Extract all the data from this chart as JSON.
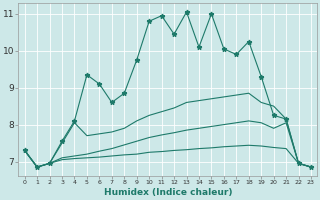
{
  "xlabel": "Humidex (Indice chaleur)",
  "bg_color": "#cde8e8",
  "grid_color": "#b8d8d8",
  "line_color": "#1e7a6a",
  "xlim": [
    -0.5,
    23.5
  ],
  "ylim": [
    6.6,
    11.3
  ],
  "xticks": [
    0,
    1,
    2,
    3,
    4,
    5,
    6,
    7,
    8,
    9,
    10,
    11,
    12,
    13,
    14,
    15,
    16,
    17,
    18,
    19,
    20,
    21,
    22,
    23
  ],
  "yticks": [
    7,
    8,
    9,
    10,
    11
  ],
  "series1_x": [
    0,
    1,
    2,
    3,
    4,
    5,
    6,
    7,
    8,
    9,
    10,
    11,
    12,
    13,
    14,
    15,
    16,
    17,
    18,
    19,
    20,
    21,
    22,
    23
  ],
  "series1_y": [
    7.3,
    6.85,
    6.95,
    7.55,
    8.1,
    9.35,
    9.1,
    8.6,
    8.85,
    9.75,
    10.8,
    10.95,
    10.45,
    11.05,
    10.1,
    11.0,
    10.05,
    9.9,
    10.25,
    9.3,
    8.25,
    8.15,
    6.95,
    6.85
  ],
  "series2_x": [
    0,
    1,
    2,
    3,
    4,
    5,
    6,
    7,
    8,
    9,
    10,
    11,
    12,
    13,
    14,
    15,
    16,
    17,
    18,
    19,
    20,
    21,
    22,
    23
  ],
  "series2_y": [
    7.3,
    6.85,
    6.95,
    7.5,
    8.05,
    7.7,
    7.75,
    7.8,
    7.9,
    8.1,
    8.25,
    8.35,
    8.45,
    8.6,
    8.65,
    8.7,
    8.75,
    8.8,
    8.85,
    8.6,
    8.5,
    8.15,
    6.95,
    6.85
  ],
  "series3_x": [
    0,
    1,
    2,
    3,
    4,
    5,
    6,
    7,
    8,
    9,
    10,
    11,
    12,
    13,
    14,
    15,
    16,
    17,
    18,
    19,
    20,
    21,
    22,
    23
  ],
  "series3_y": [
    7.3,
    6.85,
    6.95,
    7.1,
    7.15,
    7.2,
    7.28,
    7.35,
    7.45,
    7.55,
    7.65,
    7.72,
    7.78,
    7.85,
    7.9,
    7.95,
    8.0,
    8.05,
    8.1,
    8.05,
    7.9,
    8.05,
    6.95,
    6.85
  ],
  "series4_x": [
    0,
    1,
    2,
    3,
    4,
    5,
    6,
    7,
    8,
    9,
    10,
    11,
    12,
    13,
    14,
    15,
    16,
    17,
    18,
    19,
    20,
    21,
    22,
    23
  ],
  "series4_y": [
    7.3,
    6.85,
    6.95,
    7.05,
    7.08,
    7.1,
    7.12,
    7.15,
    7.18,
    7.2,
    7.25,
    7.27,
    7.3,
    7.32,
    7.35,
    7.37,
    7.4,
    7.42,
    7.44,
    7.42,
    7.38,
    7.35,
    6.95,
    6.85
  ]
}
